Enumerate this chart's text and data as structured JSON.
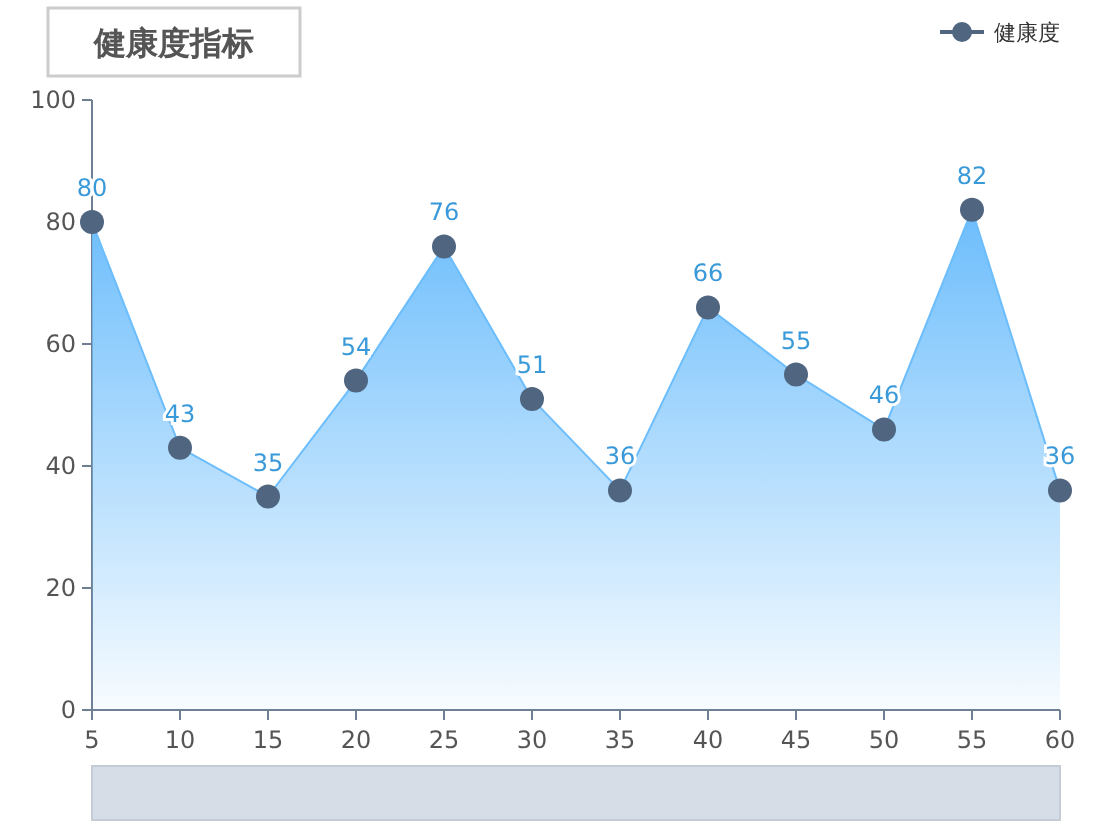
{
  "chart_data": {
    "type": "area",
    "title": "健康度指标",
    "x": [
      5,
      10,
      15,
      20,
      25,
      30,
      35,
      40,
      45,
      50,
      55,
      60
    ],
    "series": [
      {
        "name": "健康度",
        "color": "#4f6580",
        "values": [
          80,
          43,
          35,
          54,
          76,
          51,
          36,
          66,
          55,
          46,
          82,
          36
        ]
      }
    ],
    "xlim": [
      5,
      60
    ],
    "xticks": [
      5,
      10,
      15,
      20,
      25,
      30,
      35,
      40,
      45,
      50,
      55,
      60
    ],
    "ylim": [
      0,
      100
    ],
    "yticks": [
      0,
      20,
      40,
      60,
      80,
      100
    ],
    "grid": false,
    "legend": "top right",
    "marker": "circle",
    "data_labels": true
  }
}
